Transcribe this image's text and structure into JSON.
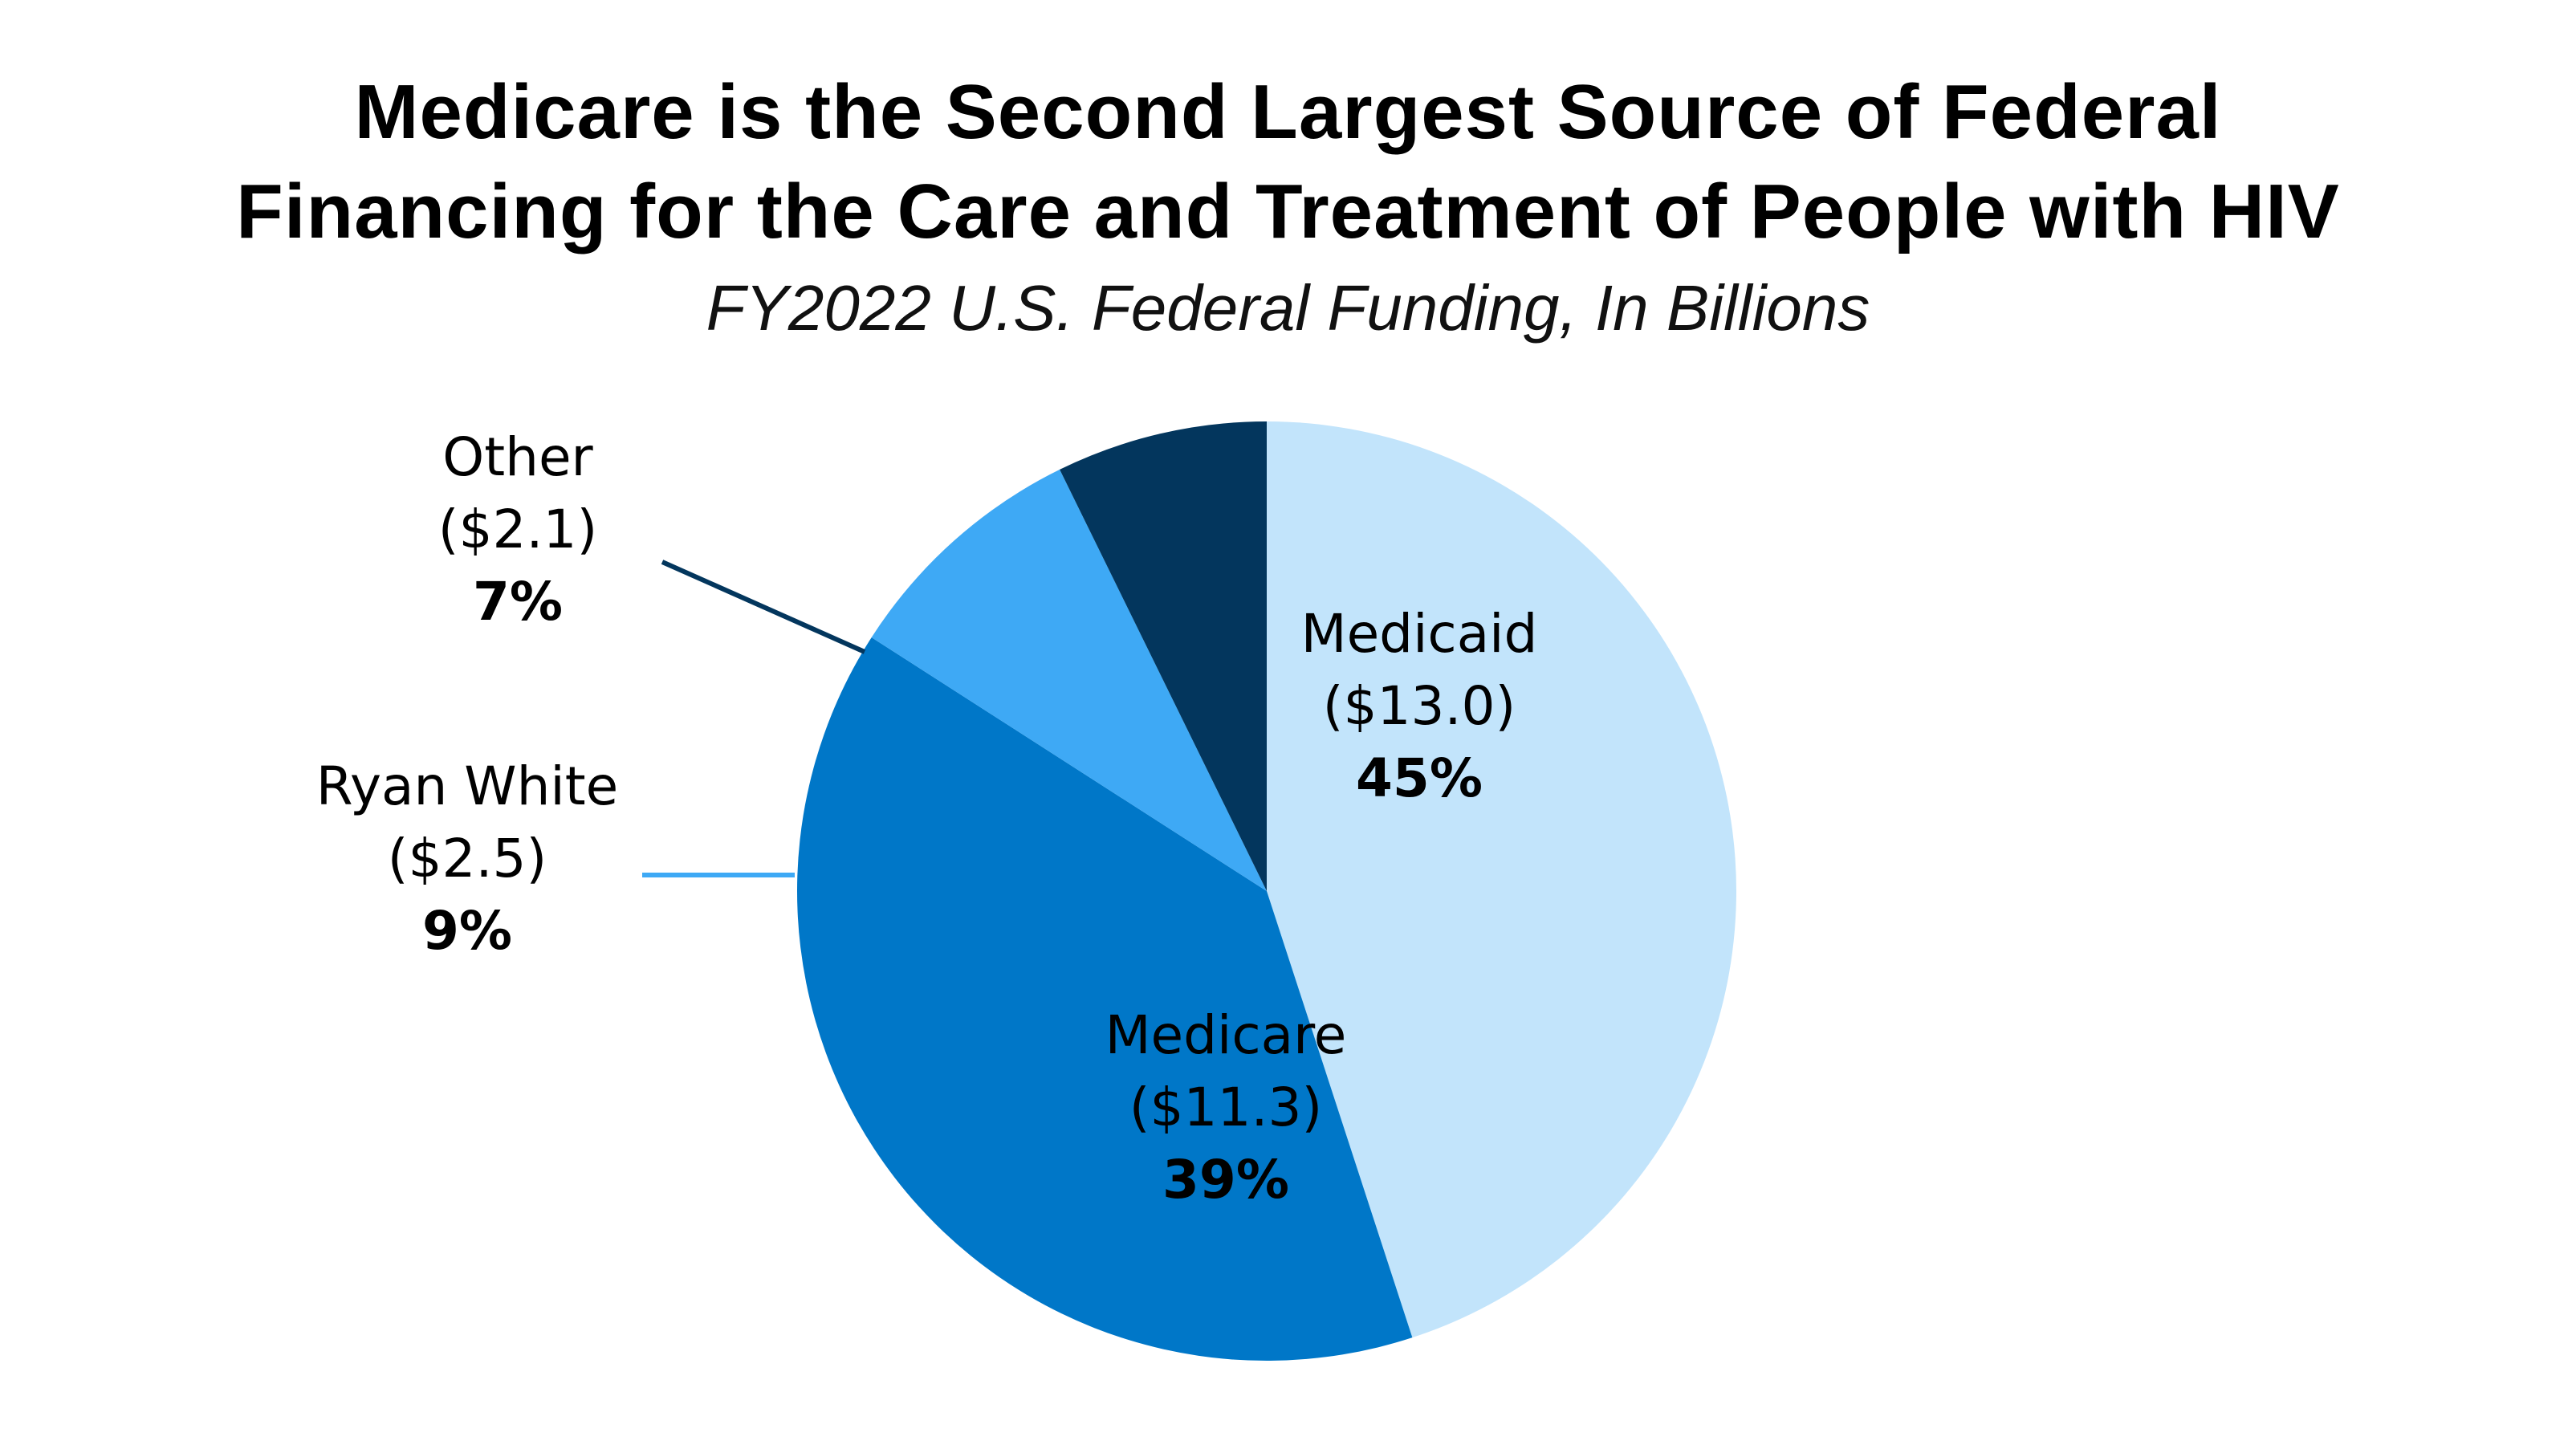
{
  "chart_data": {
    "type": "pie",
    "title_lines": [
      "Medicare is the Second Largest Source of Federal",
      "Financing for the Care and Treatment of People with HIV"
    ],
    "subtitle": "FY2022 U.S. Federal Funding, In Billions",
    "slices": [
      {
        "label": "Medicaid",
        "amount_text": "($13.0)",
        "pct_text": "45%",
        "value": 13.0,
        "color": "#c2e4fb"
      },
      {
        "label": "Medicare",
        "amount_text": "($11.3)",
        "pct_text": "39%",
        "value": 11.3,
        "color": "#0077c8"
      },
      {
        "label": "Ryan White",
        "amount_text": "($2.5)",
        "pct_text": "9%",
        "value": 2.5,
        "color": "#3ea9f5"
      },
      {
        "label": "Other",
        "amount_text": "($2.1)",
        "pct_text": "7%",
        "value": 2.1,
        "color": "#03365d"
      }
    ],
    "start_angle_deg": 0,
    "direction": "clockwise"
  }
}
